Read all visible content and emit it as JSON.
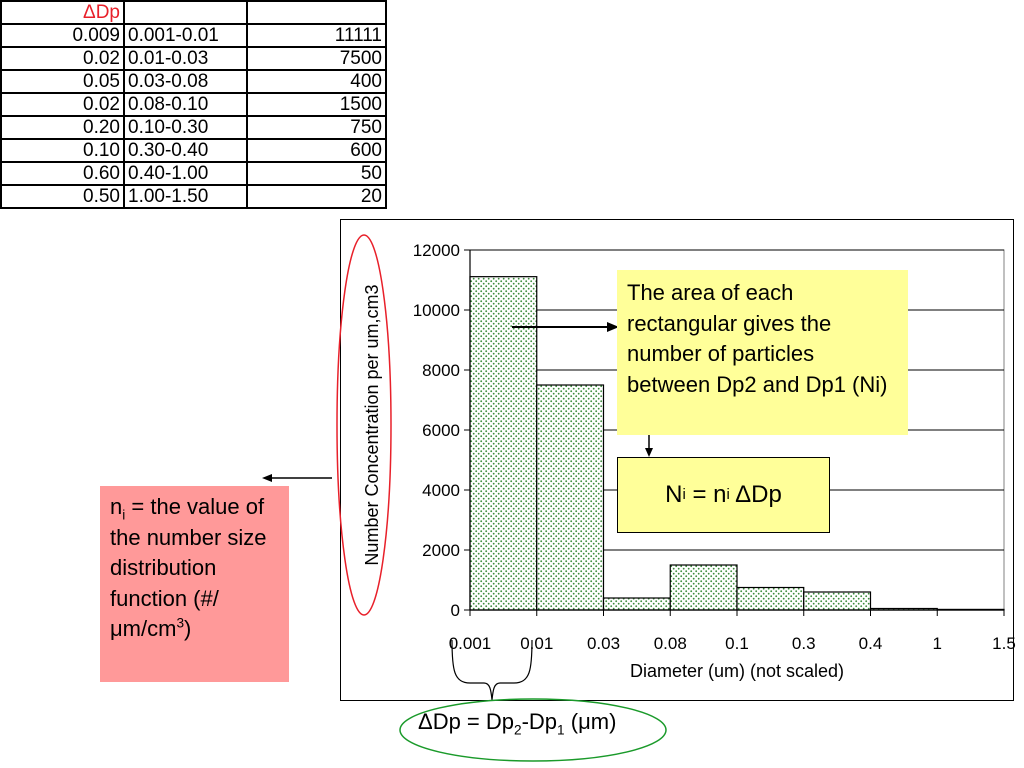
{
  "table": {
    "header": [
      "ΔDp",
      "",
      ""
    ],
    "rows": [
      [
        "0.009",
        "0.001-0.01",
        "11111"
      ],
      [
        "0.02",
        "0.01-0.03",
        "7500"
      ],
      [
        "0.05",
        "0.03-0.08",
        "400"
      ],
      [
        "0.02",
        "0.08-0.10",
        "1500"
      ],
      [
        "0.20",
        "0.10-0.30",
        "750"
      ],
      [
        "0.10",
        "0.30-0.40",
        "600"
      ],
      [
        "0.60",
        "0.40-1.00",
        "50"
      ],
      [
        "0.50",
        "1.00-1.50",
        "20"
      ]
    ]
  },
  "chart_data": {
    "type": "bar",
    "categories": [
      "0.001-0.01",
      "0.01-0.03",
      "0.03-0.08",
      "0.08-0.1",
      "0.1-0.3",
      "0.3-0.4",
      "0.4-1",
      "1-1.5"
    ],
    "values": [
      11111,
      7500,
      400,
      1500,
      750,
      600,
      50,
      20
    ],
    "x_tick_labels": [
      "0.001",
      "0.01",
      "0.03",
      "0.08",
      "0.1",
      "0.3",
      "0.4",
      "1",
      "1.5"
    ],
    "y_ticks": [
      0,
      2000,
      4000,
      6000,
      8000,
      10000,
      12000
    ],
    "ylim": [
      0,
      12000
    ],
    "xlabel": "Diameter (um) (not scaled)",
    "ylabel": "Number Concentration per um,cm3",
    "grid": "horizontal",
    "bar_color": "#c8ecc8"
  },
  "annotations": {
    "area_note": "The area of each rectangular gives the number of particles between Dp2 and Dp1 (Ni)",
    "ni_formula": {
      "lhs": "N",
      "lhs_sub": "i",
      "mid": " = n",
      "mid_sub": "i",
      "rhs": " ΔDp"
    },
    "ni_note": {
      "n": "n",
      "sub": "i",
      "text": " = the value of the number size distribution function (#/μm/cm",
      "sup": "3",
      "close": ")"
    },
    "ddp_formula": {
      "a": "ΔDp = Dp",
      "a_sub": "2",
      "b": "-Dp",
      "b_sub": "1",
      "c": " (μm)"
    }
  },
  "colors": {
    "highlight_yellow": "#ffff99",
    "highlight_pink": "#ff9999",
    "ellipse_red": "#e8202a",
    "ellipse_green": "#1a9a2a"
  }
}
